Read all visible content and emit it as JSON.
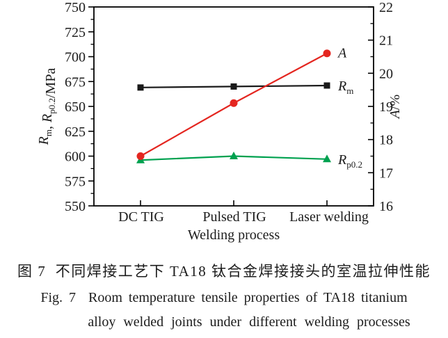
{
  "figure": {
    "caption_zh": "图 7  不同焊接工艺下 TA18 钛合金焊接接头的室温拉伸性能",
    "caption_en_line1": "Fig. 7  Room temperature tensile properties of TA18 titanium",
    "caption_en_line2": "alloy welded joints under different welding processes"
  },
  "chart_data": {
    "type": "line",
    "title": "",
    "xlabel": "Welding process",
    "ylabel_left": "Rm, Rp0.2/MPa",
    "ylabel_right": "A/%",
    "ylabel_left_parts": [
      {
        "text": "R",
        "style": "italic"
      },
      {
        "text": "m",
        "style": "sub"
      },
      {
        "text": ", ",
        "style": "normal"
      },
      {
        "text": "R",
        "style": "italic"
      },
      {
        "text": "p0.2",
        "style": "sub"
      },
      {
        "text": "/MPa",
        "style": "normal"
      }
    ],
    "ylabel_right_parts": [
      {
        "text": "A",
        "style": "italic"
      },
      {
        "text": "/%",
        "style": "normal"
      }
    ],
    "categories": [
      "DC TIG",
      "Pulsed TIG",
      "Laser welding"
    ],
    "axis_left": {
      "min": 550,
      "max": 750,
      "major": 25,
      "minor": 12.5,
      "ticks": [
        550,
        575,
        600,
        625,
        650,
        675,
        700,
        725,
        750
      ]
    },
    "axis_right": {
      "min": 16,
      "max": 22,
      "major": 1,
      "minor": 0.5,
      "ticks": [
        16,
        17,
        18,
        19,
        20,
        21,
        22
      ]
    },
    "grid": false,
    "legend_position": "labels at line ends",
    "series": [
      {
        "name": "R_p0.2",
        "axis": "left",
        "unit": "MPa",
        "color": "#00a14f",
        "marker": "triangle",
        "values": [
          596,
          600,
          597
        ],
        "label_parts": [
          {
            "text": "R",
            "style": "italic"
          },
          {
            "text": "p0.2",
            "style": "sub"
          }
        ]
      },
      {
        "name": "R_m",
        "axis": "left",
        "unit": "MPa",
        "color": "#1a1a1a",
        "marker": "square",
        "values": [
          669,
          670,
          671
        ],
        "label_parts": [
          {
            "text": "R",
            "style": "italic"
          },
          {
            "text": "m",
            "style": "sub"
          }
        ]
      },
      {
        "name": "A",
        "axis": "right",
        "unit": "%",
        "color": "#e42620",
        "marker": "circle",
        "values": [
          17.5,
          19.1,
          20.6
        ],
        "label_parts": [
          {
            "text": "A",
            "style": "italic"
          }
        ]
      }
    ]
  }
}
